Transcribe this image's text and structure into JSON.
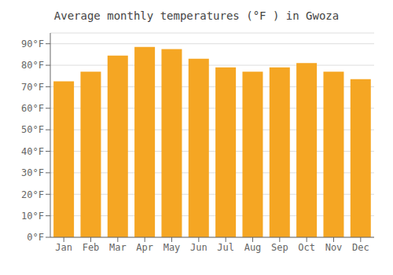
{
  "chart_data": {
    "type": "bar",
    "title": "Average monthly temperatures (°F ) in Gwoza",
    "categories": [
      "Jan",
      "Feb",
      "Mar",
      "Apr",
      "May",
      "Jun",
      "Jul",
      "Aug",
      "Sep",
      "Oct",
      "Nov",
      "Dec"
    ],
    "values": [
      72.5,
      77.0,
      84.5,
      88.5,
      87.5,
      83.0,
      79.0,
      77.0,
      79.0,
      81.0,
      77.0,
      73.5
    ],
    "color": "#F5A623",
    "ylim": [
      0,
      95
    ],
    "yticks": [
      {
        "value": 0,
        "label": "0°F"
      },
      {
        "value": 10,
        "label": "10°F"
      },
      {
        "value": 20,
        "label": "20°F"
      },
      {
        "value": 30,
        "label": "30°F"
      },
      {
        "value": 40,
        "label": "40°F"
      },
      {
        "value": 50,
        "label": "50°F"
      },
      {
        "value": 60,
        "label": "60°F"
      },
      {
        "value": 70,
        "label": "70°F"
      },
      {
        "value": 80,
        "label": "80°F"
      },
      {
        "value": 90,
        "label": "90°F"
      }
    ],
    "grid": true
  }
}
